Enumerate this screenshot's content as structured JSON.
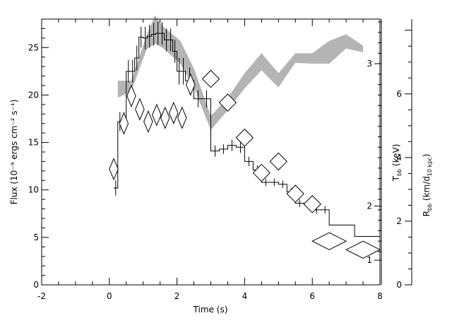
{
  "chart_data": {
    "type": "line",
    "xlabel": "Time (s)",
    "ylabel": "Flux (10⁻⁹ ergs cm⁻² s⁻¹)",
    "ylabel_temp": "Tₕₕ (keV)",
    "ylabel_temp_main": "T",
    "ylabel_temp_sub": "bb",
    "ylabel_temp_unit": " (keV)",
    "ylabel_radius_main": "R",
    "ylabel_radius_sub": "bb",
    "ylabel_radius_unit1": " (km/d",
    "ylabel_radius_sub2": "10 kpc",
    "ylabel_radius_unit2": ")",
    "xlim": [
      -2,
      8
    ],
    "ylim": [
      0,
      28
    ],
    "xticks": [
      -2,
      0,
      2,
      4,
      6,
      8
    ],
    "yticks": [
      0,
      5,
      10,
      15,
      20,
      25
    ],
    "temp_ticks": [
      {
        "label": "1",
        "flux": 2.6
      },
      {
        "label": "2",
        "flux": 8.3
      },
      {
        "label": "3",
        "flux": 23.3
      }
    ],
    "radius_lim": [
      0,
      8.35
    ],
    "radius_ticks": [
      0,
      2,
      4,
      6
    ],
    "series": [
      {
        "kind": "step",
        "color": "#000000",
        "x_edges": [
          0.125,
          0.25,
          0.375,
          0.5,
          0.625,
          0.75,
          0.875,
          1.0,
          1.125,
          1.25,
          1.375,
          1.5,
          1.625,
          1.75,
          1.875,
          2.0,
          2.125,
          2.25,
          2.5,
          2.75,
          3.0,
          3.25,
          3.5,
          3.75,
          4.0,
          4.25,
          4.5,
          4.75,
          5.0,
          5.25,
          5.5,
          5.75,
          6.0,
          6.25,
          6.5,
          6.75,
          7.0,
          7.25,
          7.5,
          7.75,
          8.0
        ],
        "values": [
          10.2,
          17.2,
          17.2,
          22.5,
          22.5,
          23.9,
          26.1,
          26.0,
          26.2,
          26.4,
          26.5,
          26.5,
          25.8,
          25.8,
          24.6,
          22.5,
          22.5,
          21.5,
          19.6,
          19.6,
          14.1,
          14.3,
          14.7,
          14.5,
          13.0,
          12.1,
          10.8,
          10.8,
          10.6,
          9.8,
          8.6,
          8.6,
          7.9,
          7.9,
          6.3,
          6.3,
          6.3,
          5.1,
          5.1,
          5.1
        ],
        "errors": [
          0.8,
          1.0,
          1.0,
          1.2,
          1.2,
          1.3,
          1.1,
          1.2,
          1.2,
          1.2,
          1.2,
          1.2,
          1.2,
          1.2,
          1.2,
          1.4,
          1.4,
          1.4,
          0.9,
          0.9,
          0.6,
          0.5,
          0.6,
          0.6,
          0.5,
          0.5,
          0.4,
          0.4,
          0.4,
          0.4,
          0.4,
          0.4,
          0.4,
          0.4,
          0.0,
          0.0,
          0.0,
          0.0,
          0.0,
          0.0
        ]
      },
      {
        "kind": "band",
        "color": "#b4b4b4",
        "x": [
          0.25,
          0.65,
          1.1,
          1.35,
          1.6,
          2.1,
          2.5,
          3.0,
          3.5,
          4.0,
          4.5,
          5.0,
          5.5,
          6.0,
          6.5,
          7.0,
          7.5
        ],
        "lower": [
          19.7,
          20.4,
          24.8,
          25.4,
          24.9,
          23.3,
          20.8,
          16.3,
          18.4,
          20.7,
          22.6,
          20.8,
          23.4,
          23.3,
          23.3,
          24.9,
          24.5
        ],
        "upper": [
          21.5,
          21.5,
          26.3,
          28.4,
          27.2,
          25.7,
          22.8,
          17.8,
          19.7,
          22.3,
          24.4,
          22.3,
          24.4,
          24.4,
          25.7,
          26.4,
          25.2
        ]
      },
      {
        "kind": "diamond",
        "color": "#000000",
        "points": [
          {
            "x": 0.13,
            "y": 12.2,
            "xerr": 0.13,
            "yerr": 1.1
          },
          {
            "x": 0.43,
            "y": 17.0,
            "xerr": 0.13,
            "yerr": 1.1
          },
          {
            "x": 0.65,
            "y": 19.9,
            "xerr": 0.13,
            "yerr": 1.1
          },
          {
            "x": 0.9,
            "y": 18.5,
            "xerr": 0.13,
            "yerr": 1.1
          },
          {
            "x": 1.15,
            "y": 17.2,
            "xerr": 0.13,
            "yerr": 1.1
          },
          {
            "x": 1.4,
            "y": 17.9,
            "xerr": 0.13,
            "yerr": 1.1
          },
          {
            "x": 1.65,
            "y": 17.6,
            "xerr": 0.13,
            "yerr": 1.1
          },
          {
            "x": 1.9,
            "y": 18.1,
            "xerr": 0.13,
            "yerr": 1.1
          },
          {
            "x": 2.15,
            "y": 17.6,
            "xerr": 0.13,
            "yerr": 1.1
          },
          {
            "x": 2.4,
            "y": 21.1,
            "xerr": 0.13,
            "yerr": 1.1
          },
          {
            "x": 3.0,
            "y": 21.7,
            "xerr": 0.25,
            "yerr": 0.9
          },
          {
            "x": 3.5,
            "y": 19.2,
            "xerr": 0.25,
            "yerr": 0.9
          },
          {
            "x": 4.0,
            "y": 15.5,
            "xerr": 0.25,
            "yerr": 0.9
          },
          {
            "x": 4.5,
            "y": 11.8,
            "xerr": 0.25,
            "yerr": 0.9
          },
          {
            "x": 5.0,
            "y": 13.0,
            "xerr": 0.25,
            "yerr": 0.9
          },
          {
            "x": 5.5,
            "y": 9.6,
            "xerr": 0.25,
            "yerr": 0.9
          },
          {
            "x": 6.0,
            "y": 8.5,
            "xerr": 0.25,
            "yerr": 0.9
          },
          {
            "x": 6.5,
            "y": 4.6,
            "xerr": 0.5,
            "yerr": 0.9
          },
          {
            "x": 7.5,
            "y": 3.7,
            "xerr": 0.5,
            "yerr": 0.9
          }
        ]
      }
    ],
    "grid": false,
    "legend": "none"
  }
}
